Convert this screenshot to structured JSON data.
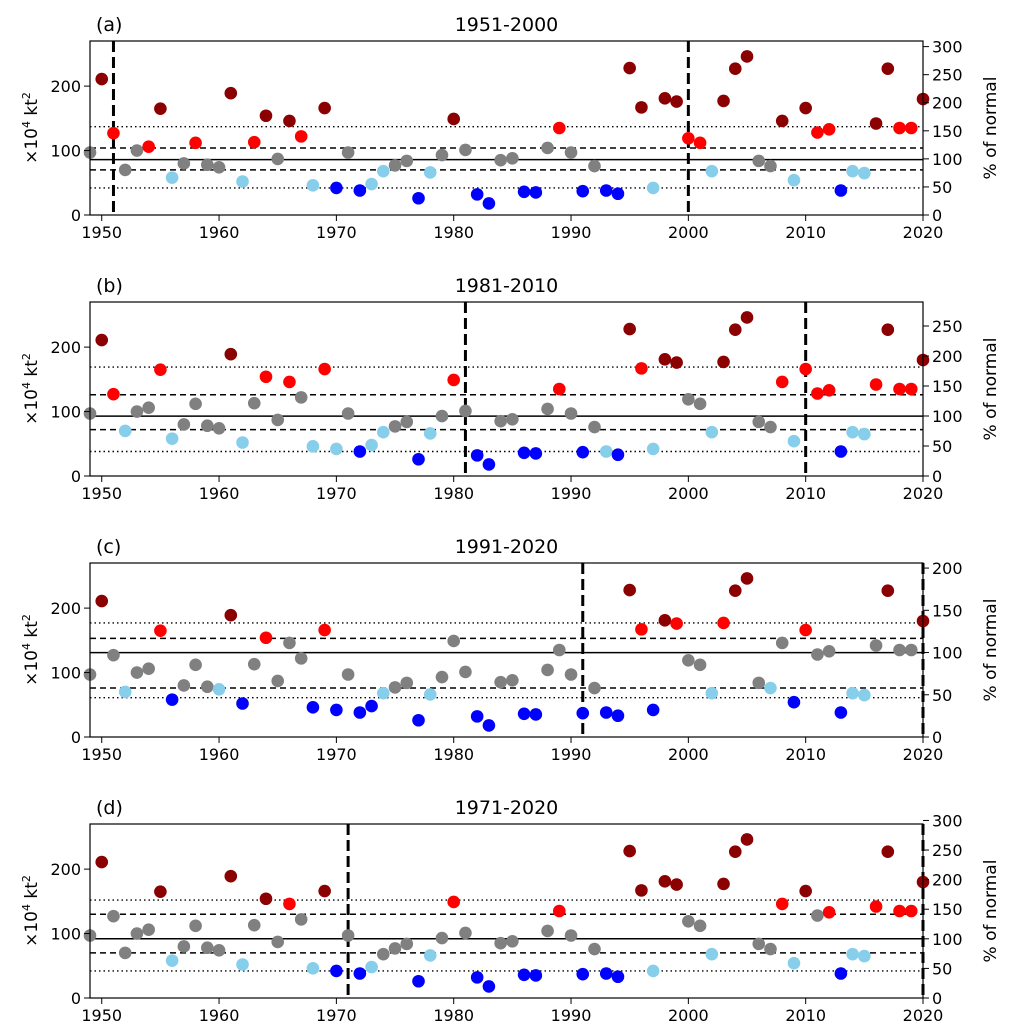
{
  "chart_data": {
    "type": "scatter",
    "years": [
      1949,
      1950,
      1951,
      1952,
      1953,
      1954,
      1955,
      1956,
      1957,
      1958,
      1959,
      1960,
      1961,
      1962,
      1963,
      1964,
      1965,
      1966,
      1967,
      1968,
      1969,
      1970,
      1971,
      1972,
      1973,
      1974,
      1975,
      1976,
      1977,
      1978,
      1979,
      1980,
      1981,
      1982,
      1983,
      1984,
      1985,
      1986,
      1987,
      1988,
      1989,
      1990,
      1991,
      1992,
      1993,
      1994,
      1995,
      1996,
      1997,
      1998,
      1999,
      2000,
      2001,
      2002,
      2003,
      2004,
      2005,
      2006,
      2007,
      2008,
      2009,
      2010,
      2011,
      2012,
      2013,
      2014,
      2015,
      2016,
      2017,
      2018,
      2019,
      2020
    ],
    "values": [
      97,
      211,
      127,
      70,
      100,
      106,
      165,
      58,
      80,
      112,
      78,
      74,
      189,
      52,
      113,
      154,
      87,
      146,
      122,
      46,
      166,
      42,
      97,
      38,
      48,
      68,
      77,
      84,
      26,
      66,
      93,
      149,
      101,
      32,
      18,
      85,
      88,
      36,
      35,
      104,
      135,
      97,
      37,
      76,
      38,
      33,
      228,
      167,
      42,
      181,
      176,
      119,
      112,
      68,
      177,
      227,
      246,
      84,
      76,
      146,
      54,
      166,
      128,
      133,
      38,
      68,
      65,
      142,
      227,
      135,
      135,
      180
    ],
    "colors": {
      "far_above": "#8b0000",
      "above": "#ff0000",
      "near": "#808080",
      "below": "#87ceeb",
      "far_below": "#0000ff"
    },
    "xlim": [
      1949,
      2020
    ],
    "ylim": [
      0,
      270
    ],
    "xticks": [
      1950,
      1960,
      1970,
      1980,
      1990,
      2000,
      2010,
      2020
    ],
    "yticks": [
      0,
      100,
      200
    ],
    "ylabel": "×10⁴ kt²",
    "ylabel_right": "% of normal",
    "panels": [
      {
        "label": "(a)",
        "title": "1951-2000",
        "period": [
          1951,
          2000
        ],
        "mean": 86,
        "thresholds": [
          42,
          70,
          104,
          137
        ],
        "right_max": 310,
        "right_ticks": [
          0,
          50,
          100,
          150,
          200,
          250,
          300
        ],
        "classes": [
          "N",
          "F",
          "A",
          "N",
          "N",
          "A",
          "F",
          "B",
          "N",
          "A",
          "N",
          "N",
          "F",
          "B",
          "A",
          "F",
          "N",
          "F",
          "A",
          "B",
          "F",
          "D",
          "N",
          "D",
          "B",
          "B",
          "N",
          "N",
          "D",
          "B",
          "N",
          "F",
          "N",
          "D",
          "D",
          "N",
          "N",
          "D",
          "D",
          "N",
          "A",
          "N",
          "D",
          "N",
          "D",
          "D",
          "F",
          "F",
          "B",
          "F",
          "F",
          "A",
          "A",
          "B",
          "F",
          "F",
          "F",
          "N",
          "N",
          "F",
          "B",
          "F",
          "A",
          "A",
          "D",
          "B",
          "B",
          "F",
          "F",
          "A",
          "A",
          "F"
        ]
      },
      {
        "label": "(b)",
        "title": "1981-2010",
        "period": [
          1981,
          2010
        ],
        "mean": 93,
        "thresholds": [
          38,
          72,
          126,
          169
        ],
        "right_max": 290,
        "right_ticks": [
          0,
          50,
          100,
          150,
          200,
          250
        ],
        "classes": [
          "N",
          "F",
          "A",
          "B",
          "N",
          "N",
          "A",
          "B",
          "N",
          "N",
          "N",
          "N",
          "F",
          "B",
          "N",
          "A",
          "N",
          "A",
          "N",
          "B",
          "A",
          "B",
          "N",
          "D",
          "B",
          "B",
          "N",
          "N",
          "D",
          "B",
          "N",
          "A",
          "N",
          "D",
          "D",
          "N",
          "N",
          "D",
          "D",
          "N",
          "A",
          "N",
          "D",
          "N",
          "B",
          "D",
          "F",
          "A",
          "B",
          "F",
          "F",
          "N",
          "N",
          "B",
          "F",
          "F",
          "F",
          "N",
          "N",
          "A",
          "B",
          "A",
          "A",
          "A",
          "D",
          "B",
          "B",
          "A",
          "F",
          "A",
          "A",
          "F"
        ]
      },
      {
        "label": "(c)",
        "title": "1991-2020",
        "period": [
          1991,
          2020
        ],
        "mean": 131,
        "thresholds": [
          61,
          76,
          153,
          177
        ],
        "right_max": 206,
        "right_ticks": [
          0,
          50,
          100,
          150,
          200
        ],
        "classes": [
          "N",
          "F",
          "N",
          "B",
          "N",
          "N",
          "A",
          "D",
          "N",
          "N",
          "N",
          "B",
          "F",
          "D",
          "N",
          "A",
          "N",
          "N",
          "N",
          "D",
          "A",
          "D",
          "N",
          "D",
          "D",
          "B",
          "N",
          "N",
          "D",
          "B",
          "N",
          "N",
          "N",
          "D",
          "D",
          "N",
          "N",
          "D",
          "D",
          "N",
          "N",
          "N",
          "D",
          "N",
          "D",
          "D",
          "F",
          "A",
          "D",
          "F",
          "A",
          "N",
          "N",
          "B",
          "A",
          "F",
          "F",
          "N",
          "B",
          "N",
          "D",
          "A",
          "N",
          "N",
          "D",
          "B",
          "B",
          "N",
          "F",
          "N",
          "N",
          "F"
        ]
      },
      {
        "label": "(d)",
        "title": "1971-2020",
        "period": [
          1971,
          2020
        ],
        "mean": 92,
        "thresholds": [
          42,
          70,
          130,
          152
        ],
        "right_max": 294,
        "right_ticks": [
          0,
          50,
          100,
          150,
          200,
          250,
          300
        ],
        "classes": [
          "N",
          "F",
          "N",
          "N",
          "N",
          "N",
          "F",
          "B",
          "N",
          "N",
          "N",
          "N",
          "F",
          "B",
          "N",
          "F",
          "N",
          "A",
          "N",
          "B",
          "F",
          "D",
          "N",
          "D",
          "B",
          "N",
          "N",
          "N",
          "D",
          "B",
          "N",
          "A",
          "N",
          "D",
          "D",
          "N",
          "N",
          "D",
          "D",
          "N",
          "A",
          "N",
          "D",
          "N",
          "D",
          "D",
          "F",
          "F",
          "B",
          "F",
          "F",
          "N",
          "N",
          "B",
          "F",
          "F",
          "F",
          "N",
          "N",
          "A",
          "B",
          "F",
          "N",
          "A",
          "D",
          "B",
          "B",
          "A",
          "F",
          "A",
          "A",
          "F"
        ]
      }
    ]
  }
}
